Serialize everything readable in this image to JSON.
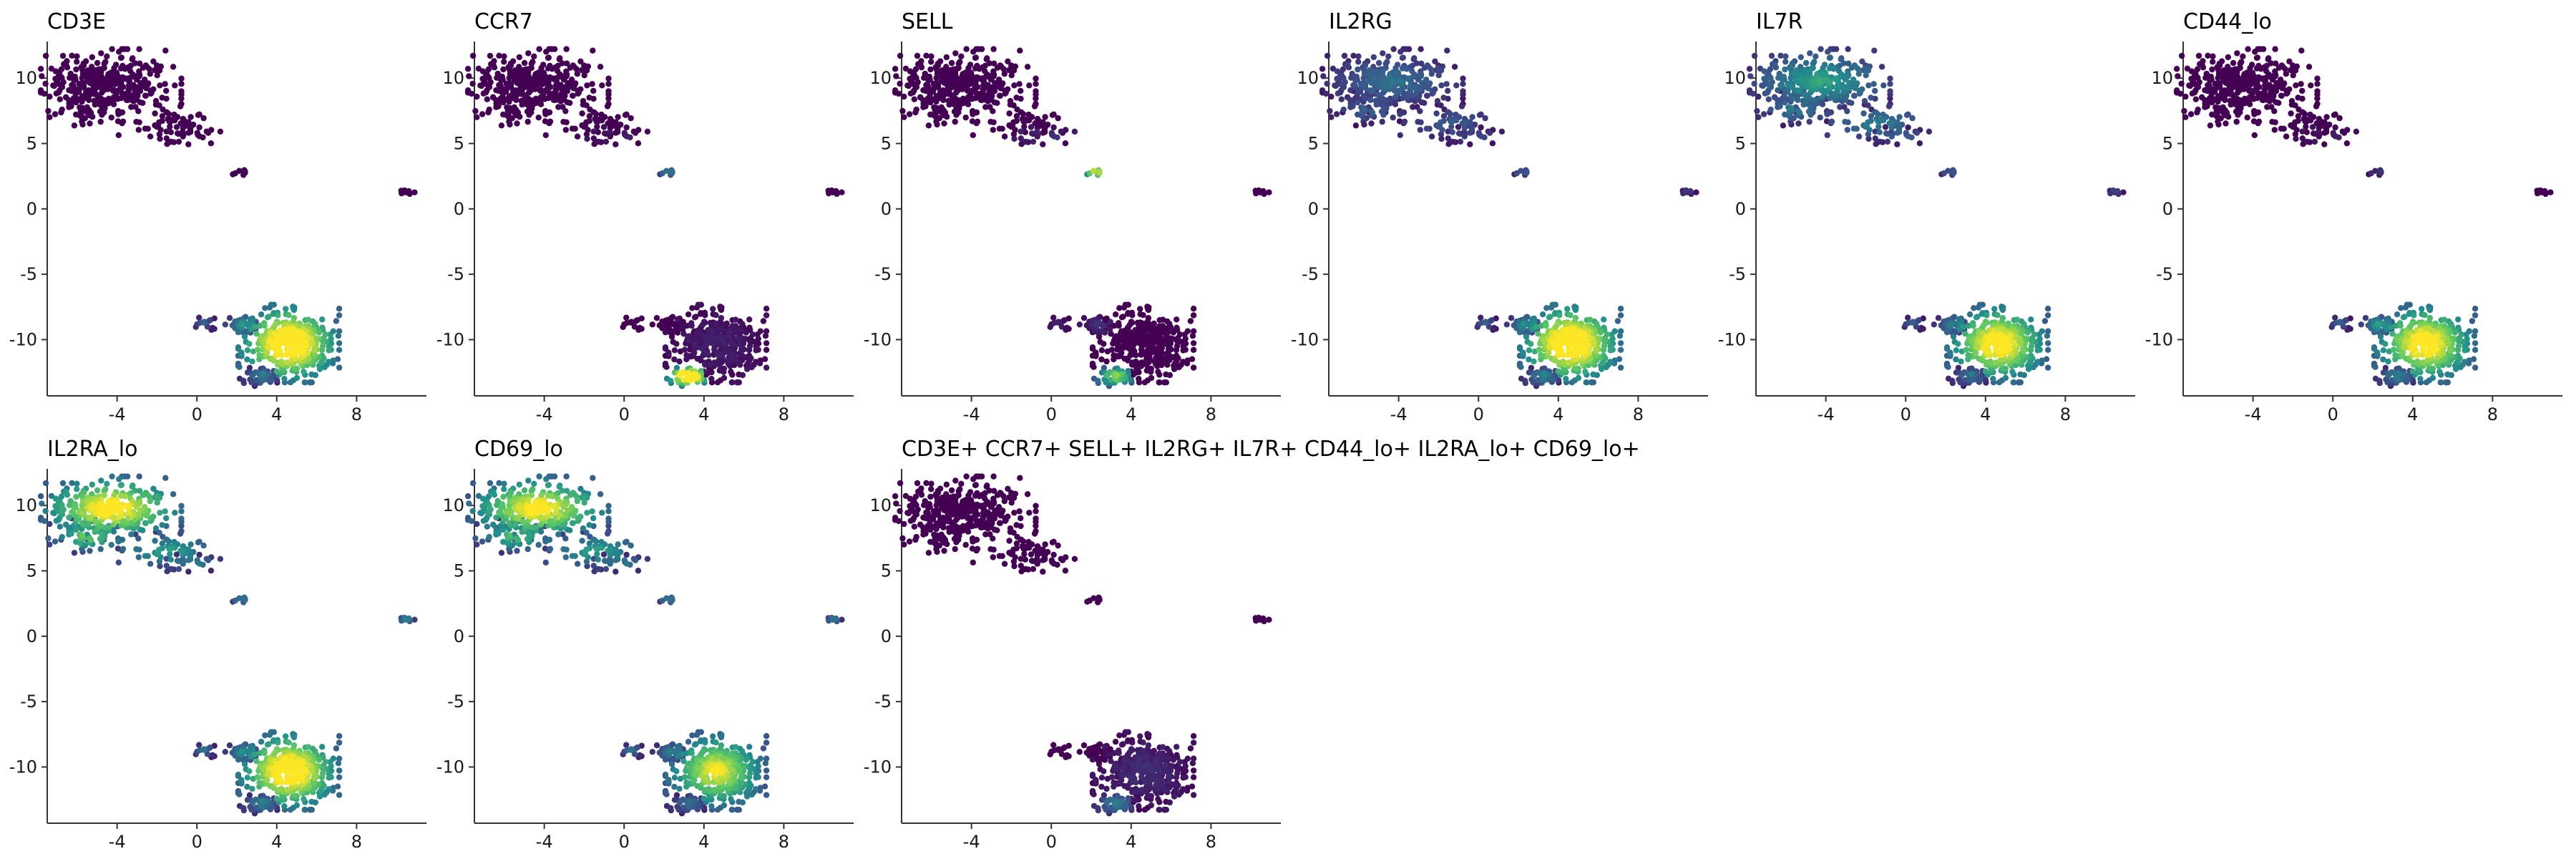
{
  "chart_data": {
    "type": "scatter",
    "x_ticks": [
      -4,
      0,
      4,
      8
    ],
    "y_ticks": [
      10,
      5,
      0,
      -5,
      -10
    ],
    "xlim": [
      -7.5,
      11.5
    ],
    "ylim": [
      -14.3,
      12.8
    ],
    "point_size": "small",
    "colormap": "viridis",
    "colors": [
      "#440154",
      "#3b528b",
      "#21918c",
      "#5ec962",
      "#fde725"
    ],
    "grid": false,
    "legend": "none",
    "clusters": [
      {
        "id": "upper",
        "center": [
          -4.3,
          9.8
        ],
        "spread": [
          1.6,
          1.1
        ],
        "points": 300
      },
      {
        "id": "upper-left-tail",
        "center": [
          -5.4,
          7.7
        ],
        "spread": [
          0.9,
          0.6
        ],
        "points": 60
      },
      {
        "id": "upper-right-tail",
        "center": [
          -1.5,
          6.5
        ],
        "spread": [
          1.4,
          0.7
        ],
        "points": 55
      },
      {
        "id": "streak",
        "center": [
          -0.3,
          5.6
        ],
        "spread": [
          0.9,
          0.3
        ],
        "points": 20
      },
      {
        "id": "dot-small",
        "center": [
          2.2,
          2.8
        ],
        "spread": [
          0.25,
          0.2
        ],
        "points": 8
      },
      {
        "id": "far-right",
        "center": [
          10.5,
          1.3
        ],
        "spread": [
          0.2,
          0.12
        ],
        "points": 8
      },
      {
        "id": "lower-main",
        "center": [
          4.6,
          -10.3
        ],
        "spread": [
          1.15,
          1.35
        ],
        "points": 360
      },
      {
        "id": "lower-left",
        "center": [
          2.3,
          -8.9
        ],
        "spread": [
          0.4,
          0.35
        ],
        "points": 35
      },
      {
        "id": "lower-tip",
        "center": [
          0.4,
          -8.7
        ],
        "spread": [
          0.3,
          0.25
        ],
        "points": 14
      },
      {
        "id": "lower-bottom",
        "center": [
          3.2,
          -12.8
        ],
        "spread": [
          0.5,
          0.35
        ],
        "points": 45
      }
    ],
    "panels": [
      {
        "title": "CD3E",
        "intensity": [
          0,
          0,
          0,
          0,
          0,
          0,
          0.88,
          0.38,
          0.2,
          0.28
        ]
      },
      {
        "title": "CCR7",
        "intensity": [
          0,
          0,
          0,
          0.05,
          0.3,
          0,
          0.05,
          0,
          0,
          0.95
        ]
      },
      {
        "title": "SELL",
        "intensity": [
          0,
          0,
          0,
          0.1,
          0.75,
          0,
          0,
          0.1,
          0.05,
          0.6
        ]
      },
      {
        "title": "IL2RG",
        "intensity": [
          0.25,
          0.22,
          0.2,
          0.15,
          0.2,
          0.12,
          0.88,
          0.35,
          0.2,
          0.3
        ]
      },
      {
        "title": "IL7R",
        "intensity": [
          0.4,
          0.3,
          0.3,
          0.2,
          0.2,
          0.15,
          0.8,
          0.3,
          0.2,
          0.25
        ]
      },
      {
        "title": "CD44_lo",
        "intensity": [
          0,
          0,
          0,
          0.05,
          0.1,
          0,
          0.8,
          0.4,
          0.2,
          0.3
        ]
      },
      {
        "title": "IL2RA_lo",
        "intensity": [
          0.78,
          0.55,
          0.4,
          0.3,
          0.3,
          0.35,
          0.85,
          0.35,
          0.25,
          0.3
        ]
      },
      {
        "title": "CD69_lo",
        "intensity": [
          0.75,
          0.5,
          0.4,
          0.3,
          0.3,
          0.3,
          0.7,
          0.3,
          0.25,
          0.25
        ]
      },
      {
        "title": "CD3E+ CCR7+ SELL+ IL2RG+ IL7R+ CD44_lo+ IL2RA_lo+ CD69_lo+",
        "intensity": [
          0,
          0,
          0,
          0,
          0,
          0,
          0.08,
          0,
          0,
          0.3
        ]
      }
    ]
  }
}
